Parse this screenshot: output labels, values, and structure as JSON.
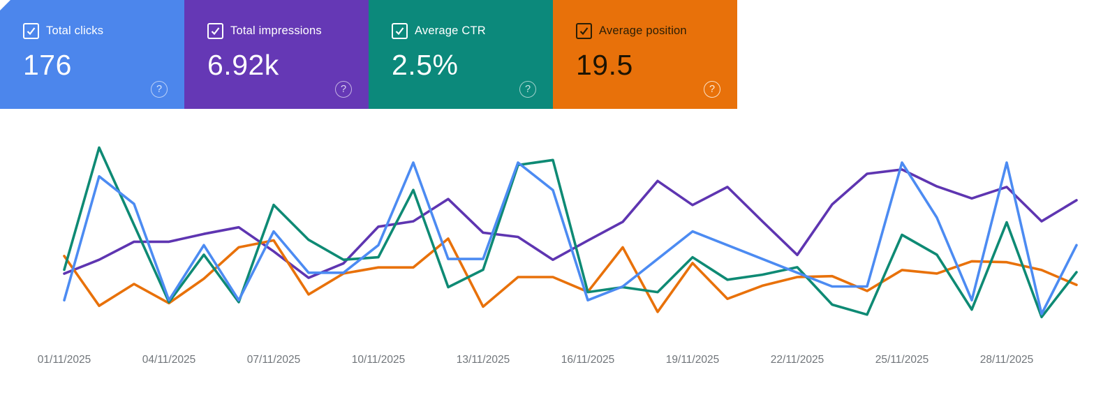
{
  "cards": [
    {
      "label": "Total clicks",
      "value": "176",
      "checked": true,
      "bg": "#4c86ec",
      "line_color": "#4c8bf2"
    },
    {
      "label": "Total impressions",
      "value": "6.92k",
      "checked": true,
      "bg": "#6538b5",
      "line_color": "#5e35b1"
    },
    {
      "label": "Average CTR",
      "value": "2.5%",
      "checked": true,
      "bg": "#0c897b",
      "line_color": "#0e8a74"
    },
    {
      "label": "Average position",
      "value": "19.5",
      "checked": true,
      "bg": "#e8710a",
      "line_color": "#e8710a"
    }
  ],
  "help_glyph": "?",
  "chart_data": {
    "type": "line",
    "x_unit": "day",
    "x_dates": [
      "01/11/2025",
      "02/11/2025",
      "03/11/2025",
      "04/11/2025",
      "05/11/2025",
      "06/11/2025",
      "07/11/2025",
      "08/11/2025",
      "09/11/2025",
      "10/11/2025",
      "11/11/2025",
      "12/11/2025",
      "13/11/2025",
      "14/11/2025",
      "15/11/2025",
      "16/11/2025",
      "17/11/2025",
      "18/11/2025",
      "19/11/2025",
      "20/11/2025",
      "21/11/2025",
      "22/11/2025",
      "23/11/2025",
      "24/11/2025",
      "25/11/2025",
      "26/11/2025",
      "27/11/2025",
      "28/11/2025",
      "29/11/2025",
      "30/11/2025"
    ],
    "x_tick_labels": [
      "01/11/2025",
      "04/11/2025",
      "07/11/2025",
      "10/11/2025",
      "13/11/2025",
      "16/11/2025",
      "19/11/2025",
      "22/11/2025",
      "25/11/2025",
      "28/11/2025"
    ],
    "grid": false,
    "legend": "metric cards act as legend toggles",
    "series": [
      {
        "name": "Total clicks",
        "metric": "clicks",
        "color": "#4c8bf2",
        "total": 176,
        "values": [
          2,
          11,
          9,
          2,
          6,
          2,
          7,
          4,
          4,
          6,
          12,
          5,
          5,
          12,
          10,
          2,
          3,
          5,
          7,
          6,
          5,
          4,
          3,
          3,
          12,
          8,
          2,
          12,
          1,
          6
        ],
        "approx_range": [
          1,
          12
        ]
      },
      {
        "name": "Total impressions",
        "metric": "impressions",
        "color": "#5e35b1",
        "total": 6920,
        "values": [
          147,
          170,
          200,
          200,
          213,
          224,
          184,
          140,
          164,
          225,
          234,
          271,
          215,
          208,
          170,
          202,
          233,
          301,
          261,
          291,
          234,
          178,
          262,
          313,
          320,
          292,
          272,
          291,
          234,
          269
        ],
        "approx_range": [
          140,
          320
        ]
      },
      {
        "name": "Average CTR",
        "metric": "ctr",
        "color": "#0e8a74",
        "average": 2.5,
        "unit": "%",
        "values": [
          2.0,
          6.9,
          3.8,
          0.7,
          2.6,
          0.7,
          4.6,
          3.2,
          2.4,
          2.5,
          5.2,
          1.3,
          2.0,
          6.2,
          6.4,
          1.1,
          1.3,
          1.1,
          2.5,
          1.6,
          1.8,
          2.1,
          0.6,
          0.2,
          3.4,
          2.6,
          0.4,
          3.9,
          0.1,
          1.9
        ],
        "approx_range": [
          0.1,
          6.9
        ]
      },
      {
        "name": "Average position",
        "metric": "position",
        "color": "#e8710a",
        "average": 19.5,
        "inverted_axis": true,
        "values": [
          17.2,
          22.9,
          20.4,
          22.6,
          19.8,
          16.2,
          15.4,
          21.6,
          19.2,
          18.5,
          18.5,
          15.2,
          23.0,
          19.6,
          19.6,
          21.3,
          16.2,
          23.6,
          18.0,
          22.1,
          20.6,
          19.6,
          19.5,
          21.2,
          18.8,
          19.2,
          17.8,
          17.9,
          18.8,
          20.5
        ],
        "approx_range": [
          15.2,
          23.6
        ]
      }
    ]
  }
}
